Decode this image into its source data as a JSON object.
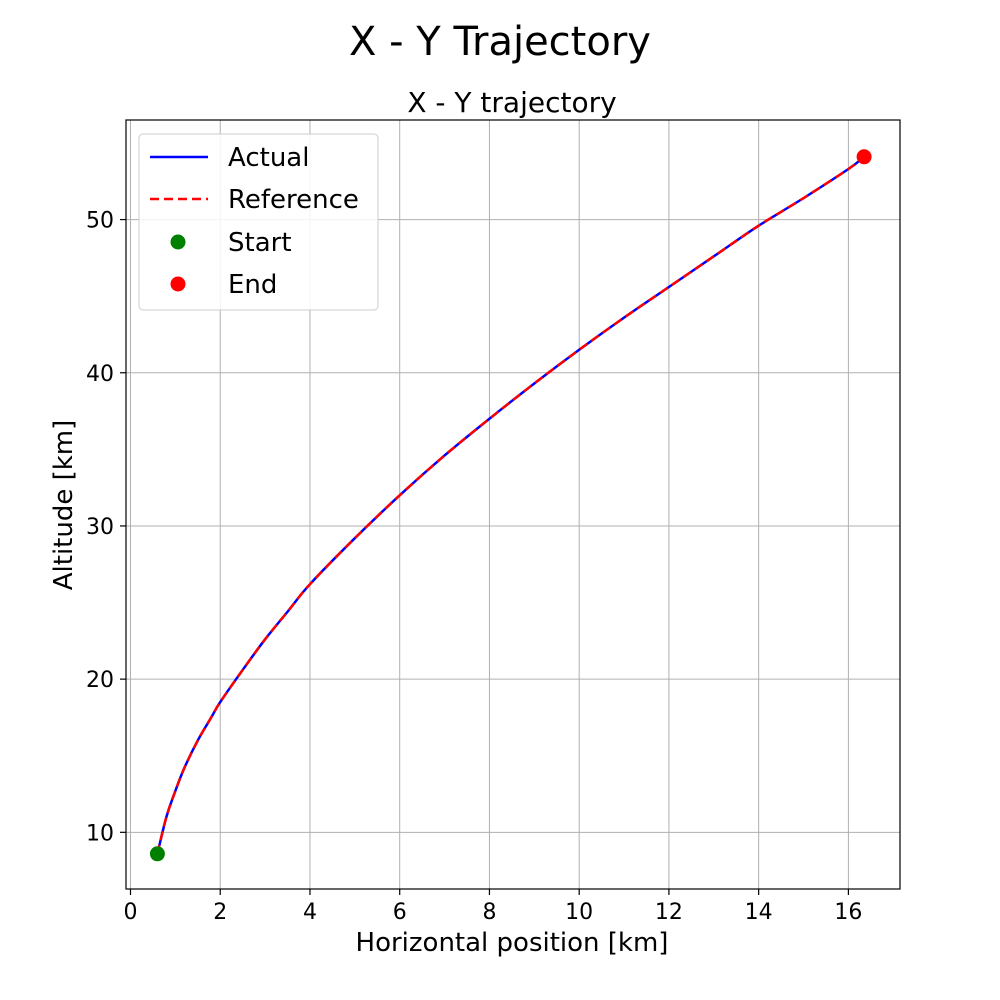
{
  "figure_title": "X - Y Trajectory",
  "chart_data": {
    "type": "line",
    "title": "X - Y trajectory",
    "xlabel": "Horizontal position [km]",
    "ylabel": "Altitude [km]",
    "xlim": [
      -0.1,
      17.15
    ],
    "ylim": [
      6.3,
      56.5
    ],
    "xticks": [
      0,
      2,
      4,
      6,
      8,
      10,
      12,
      14,
      16
    ],
    "yticks": [
      10,
      20,
      30,
      40,
      50
    ],
    "grid": true,
    "legend_position": "upper-left",
    "series": [
      {
        "name": "Actual",
        "style": "solid",
        "color": "#0000ff",
        "x": [
          0.6,
          0.8,
          1.0,
          1.2,
          1.5,
          1.8,
          2.0,
          2.5,
          3.0,
          3.5,
          4.0,
          5.0,
          6.0,
          7.0,
          8.0,
          9.0,
          10.0,
          11.0,
          12.0,
          13.0,
          14.0,
          15.0,
          16.0,
          16.35
        ],
        "y": [
          8.6,
          11.0,
          12.7,
          14.2,
          16.0,
          17.5,
          18.5,
          20.6,
          22.6,
          24.4,
          26.2,
          29.2,
          32.0,
          34.6,
          37.0,
          39.3,
          41.5,
          43.6,
          45.6,
          47.6,
          49.6,
          51.4,
          53.3,
          54.1
        ]
      },
      {
        "name": "Reference",
        "style": "dashed",
        "color": "#ff0000",
        "x": [
          0.6,
          0.8,
          1.0,
          1.2,
          1.5,
          1.8,
          2.0,
          2.5,
          3.0,
          3.5,
          4.0,
          5.0,
          6.0,
          7.0,
          8.0,
          9.0,
          10.0,
          11.0,
          12.0,
          13.0,
          14.0,
          15.0,
          16.0,
          16.35
        ],
        "y": [
          8.6,
          11.0,
          12.7,
          14.2,
          16.0,
          17.5,
          18.5,
          20.6,
          22.6,
          24.4,
          26.2,
          29.2,
          32.0,
          34.6,
          37.0,
          39.3,
          41.5,
          43.6,
          45.6,
          47.6,
          49.6,
          51.4,
          53.3,
          54.1
        ]
      }
    ],
    "markers": [
      {
        "name": "Start",
        "color": "#008000",
        "x": 0.6,
        "y": 8.6
      },
      {
        "name": "End",
        "color": "#ff0000",
        "x": 16.35,
        "y": 54.1
      }
    ]
  }
}
